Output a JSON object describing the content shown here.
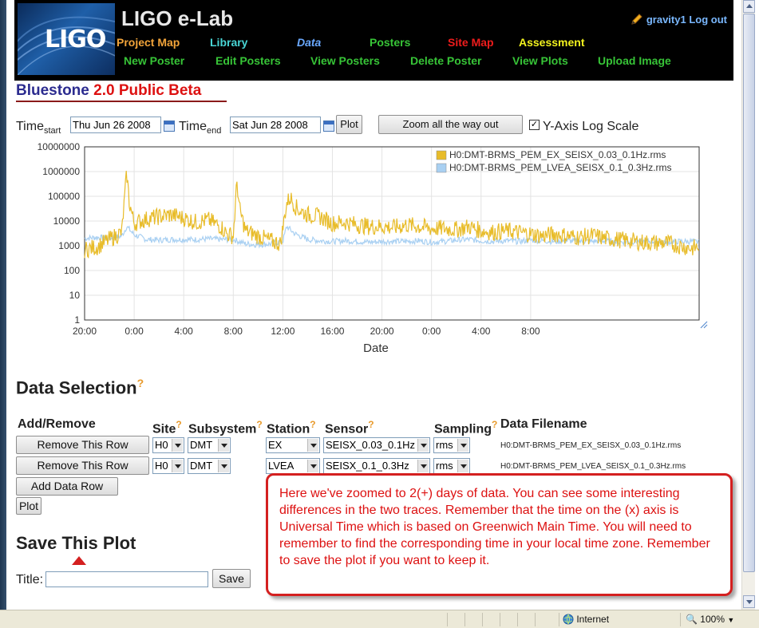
{
  "header": {
    "logo": "LIGO",
    "site_title": "LIGO e-Lab",
    "user": "gravity1",
    "logout": "Log out",
    "nav_row1": [
      {
        "label": "Project Map",
        "color": "#f2a43a",
        "italic": false
      },
      {
        "label": "Library",
        "color": "#49d6d6",
        "italic": false
      },
      {
        "label": "Data",
        "color": "#6aa9ff",
        "italic": true
      },
      {
        "label": "Posters",
        "color": "#37c437",
        "italic": false
      },
      {
        "label": "Site Map",
        "color": "#ee1c1c",
        "italic": false
      },
      {
        "label": "Assessment",
        "color": "#f2f21e",
        "italic": false
      }
    ],
    "nav_row2": [
      {
        "label": "New Poster"
      },
      {
        "label": "Edit Posters"
      },
      {
        "label": "View Posters"
      },
      {
        "label": "Delete Poster"
      },
      {
        "label": "View Plots"
      },
      {
        "label": "Upload Image"
      }
    ],
    "nav_row2_color": "#37c437"
  },
  "app_title": {
    "part1": "Bluestone",
    "part2": "2.0 Public Beta"
  },
  "controls": {
    "time_label": "Time",
    "start_sub": "start",
    "end_sub": "end",
    "start_value": "Thu Jun 26 2008",
    "end_value": "Sat Jun 28 2008",
    "plot_button": "Plot",
    "zoom_button": "Zoom all the way out",
    "log_scale_label": "Y-Axis Log Scale",
    "log_scale_checked": "✓"
  },
  "chart_data": {
    "type": "line",
    "xlabel": "Date",
    "ylabel": "",
    "log_y": true,
    "ylim": [
      1,
      10000000
    ],
    "y_ticks": [
      "1",
      "10",
      "100",
      "1000",
      "10000",
      "100000",
      "1000000",
      "10000000"
    ],
    "x_ticks": [
      "20:00",
      "0:00",
      "4:00",
      "8:00",
      "12:00",
      "16:00",
      "20:00",
      "0:00",
      "4:00",
      "8:00"
    ],
    "x_range_hours": [
      20,
      69.6
    ],
    "grid": true,
    "legend_position": "top-right",
    "series": [
      {
        "name": "H0:DMT-BRMS_PEM_EX_SEISX_0.03_0.1Hz.rms",
        "color": "#e8bc2a",
        "x": [
          20,
          21,
          22,
          23,
          23.4,
          23.6,
          24,
          25,
          26,
          27,
          28,
          29,
          30,
          31,
          31.5,
          32,
          32.3,
          32.5,
          33,
          34,
          35,
          35.8,
          36,
          36.3,
          36.6,
          37,
          37.2,
          38,
          39,
          40,
          41,
          42,
          43,
          44,
          45,
          46,
          47,
          48,
          49,
          50,
          51,
          52,
          53,
          54,
          55,
          56,
          57,
          58,
          59,
          60,
          61,
          62,
          63,
          64,
          65,
          66,
          67,
          68,
          69,
          69.6
        ],
        "y": [
          700,
          900,
          1800,
          3500,
          900000,
          60000,
          8000,
          12000,
          15000,
          18000,
          13000,
          9000,
          11000,
          6000,
          3000,
          2500,
          400000,
          30000,
          4000,
          2500,
          1600,
          1200,
          5000,
          50000,
          90000,
          40000,
          30000,
          18000,
          15000,
          8000,
          9000,
          7000,
          6000,
          6000,
          5500,
          7000,
          6000,
          5000,
          5000,
          4500,
          6000,
          4000,
          3500,
          4000,
          3500,
          3000,
          2500,
          3000,
          2500,
          2200,
          2600,
          2000,
          1800,
          1600,
          1400,
          1300,
          1300,
          1000,
          800,
          900
        ]
      },
      {
        "name": "H0:DMT-BRMS_PEM_LVEA_SEISX_0.1_0.3Hz.rms",
        "color": "#a9d0f2",
        "x": [
          20,
          21,
          22,
          23,
          23.4,
          24,
          25,
          26,
          27,
          28,
          29,
          30,
          31,
          32,
          33,
          34,
          35,
          36,
          36.3,
          37,
          38,
          39,
          40,
          41,
          42,
          43,
          44,
          45,
          46,
          47,
          48,
          49,
          50,
          51,
          52,
          53,
          54,
          55,
          56,
          57,
          58,
          59,
          60,
          61,
          62,
          63,
          64,
          65,
          66,
          67,
          68,
          69,
          69.6
        ],
        "y": [
          2000,
          2200,
          2000,
          2500,
          6000,
          2800,
          1800,
          1700,
          1800,
          1800,
          1800,
          1900,
          1800,
          1800,
          1200,
          1100,
          1200,
          1500,
          6000,
          3000,
          1800,
          1600,
          1500,
          1600,
          1500,
          1400,
          1500,
          1500,
          1500,
          1600,
          1400,
          1500,
          1700,
          1800,
          1600,
          1500,
          1600,
          1500,
          1700,
          1600,
          1500,
          1600,
          1500,
          1500,
          1600,
          1400,
          1500,
          1500,
          1500,
          1400,
          1500,
          1500,
          1400
        ]
      }
    ]
  },
  "data_selection": {
    "title": "Data Selection",
    "help": "?",
    "headers": {
      "add_remove": "Add/Remove",
      "site": "Site",
      "subsystem": "Subsystem",
      "station": "Station",
      "sensor": "Sensor",
      "sampling": "Sampling",
      "filename": "Data Filename"
    },
    "rows": [
      {
        "remove": "Remove This Row",
        "site": "H0",
        "subsystem": "DMT",
        "station": "EX",
        "sensor": "SEISX_0.03_0.1Hz",
        "sampling": "rms",
        "filename": "H0:DMT-BRMS_PEM_EX_SEISX_0.03_0.1Hz.rms"
      },
      {
        "remove": "Remove This Row",
        "site": "H0",
        "subsystem": "DMT",
        "station": "LVEA",
        "sensor": "SEISX_0.1_0.3Hz",
        "sampling": "rms",
        "filename": "H0:DMT-BRMS_PEM_LVEA_SEISX_0.1_0.3Hz.rms"
      }
    ],
    "add_row": "Add Data Row",
    "plot": "Plot"
  },
  "save": {
    "title": "Save This Plot",
    "title_label": "Title:",
    "title_value": "",
    "save_button": "Save"
  },
  "callout": {
    "text": "Here we've zoomed to 2(+) days of data.  You can see some interesting differences in the two traces.  Remember that the time on the (x) axis is Universal Time which is based on Greenwich Main Time.  You will need to remember to find the corresponding time in your local time zone.  Remember to save the plot if you want to keep it."
  },
  "statusbar": {
    "zone": "Internet",
    "zoom": "100%"
  }
}
